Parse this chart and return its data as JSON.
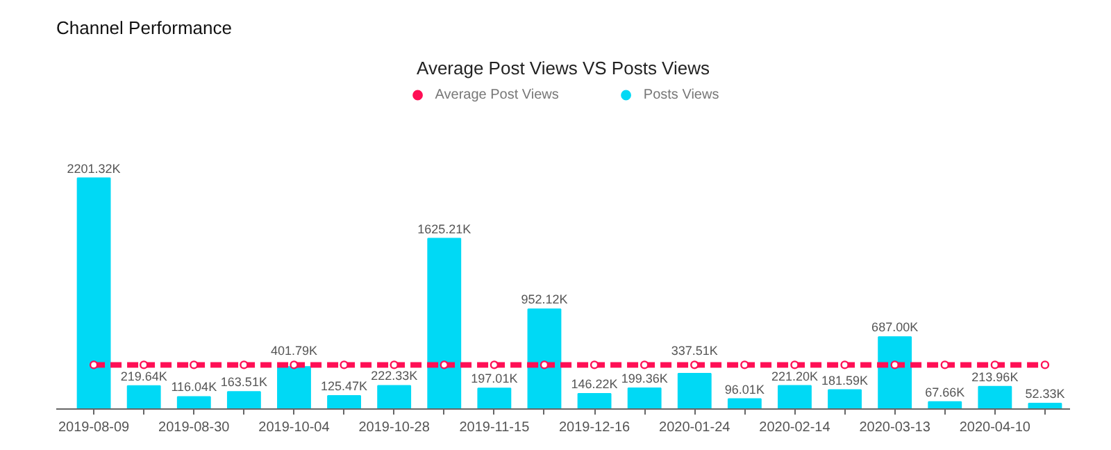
{
  "chart_data": {
    "type": "bar",
    "title": "Channel Performance",
    "subtitle": "Average Post Views VS Posts Views",
    "categories": [
      "2019-08-09",
      null,
      "2019-08-30",
      null,
      "2019-10-04",
      null,
      "2019-10-28",
      null,
      "2019-11-15",
      null,
      "2019-12-16",
      null,
      "2020-01-24",
      null,
      "2020-02-14",
      null,
      "2020-03-13",
      null,
      "2020-04-10",
      null
    ],
    "series": [
      {
        "name": "Average Post Views",
        "type": "line",
        "color": "#ff0f55",
        "marker": "circle",
        "line_style": "dashed",
        "values": [
          421.36,
          421.36,
          421.36,
          421.36,
          421.36,
          421.36,
          421.36,
          421.36,
          421.36,
          421.36,
          421.36,
          421.36,
          421.36,
          421.36,
          421.36,
          421.36,
          421.36,
          421.36,
          421.36,
          421.36
        ]
      },
      {
        "name": "Posts Views",
        "color": "#00d9f5",
        "values": [
          2201.32,
          219.64,
          116.04,
          163.51,
          401.79,
          125.47,
          222.33,
          1625.21,
          197.01,
          952.12,
          146.22,
          199.36,
          337.51,
          96.01,
          221.2,
          181.59,
          687.0,
          67.66,
          213.96,
          52.33
        ],
        "value_labels": [
          "2201.32K",
          "219.64K",
          "116.04K",
          "163.51K",
          "401.79K",
          "125.47K",
          "222.33K",
          "1625.21K",
          "197.01K",
          "952.12K",
          "146.22K",
          "199.36K",
          "337.51K",
          "96.01K",
          "221.20K",
          "181.59K",
          "687.00K",
          "67.66K",
          "213.96K",
          "52.33K"
        ]
      }
    ],
    "legend": "top",
    "grid": false
  }
}
